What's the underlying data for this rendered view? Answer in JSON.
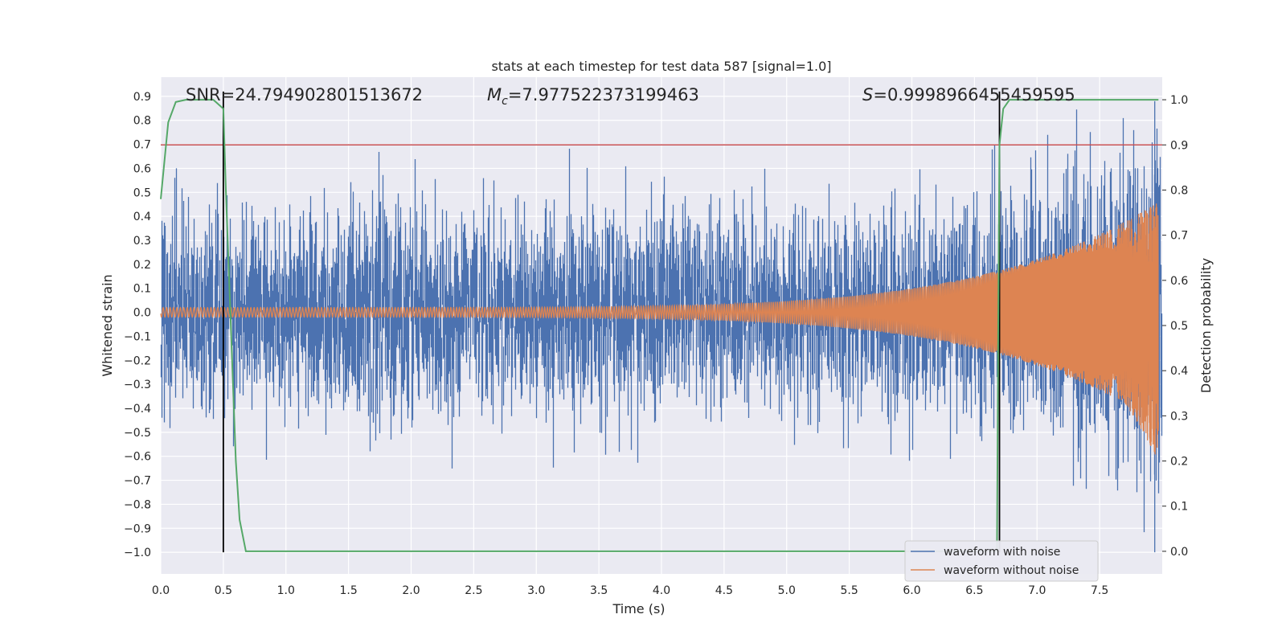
{
  "chart_data": {
    "type": "line",
    "title": "stats at each timestep for test data 587 [signal=1.0]",
    "xlabel": "Time (s)",
    "ylabel": "Whitened strain",
    "ylabel_right": "Detection probability",
    "xlim": [
      0.0,
      8.0
    ],
    "ylim": [
      -1.09,
      0.98
    ],
    "ylim_right": [
      -0.05,
      1.05
    ],
    "x_ticks": [
      0.0,
      0.5,
      1.0,
      1.5,
      2.0,
      2.5,
      3.0,
      3.5,
      4.0,
      4.5,
      5.0,
      5.5,
      6.0,
      6.5,
      7.0,
      7.5
    ],
    "x_tick_labels": [
      "0.0",
      "0.5",
      "1.0",
      "1.5",
      "2.0",
      "2.5",
      "3.0",
      "3.5",
      "4.0",
      "4.5",
      "5.0",
      "5.5",
      "6.0",
      "6.5",
      "7.0",
      "7.5"
    ],
    "y_ticks": [
      0.9,
      0.8,
      0.7,
      0.6,
      0.5,
      0.4,
      0.3,
      0.2,
      0.1,
      0.0,
      -0.1,
      -0.2,
      -0.3,
      -0.4,
      -0.5,
      -0.6,
      -0.7,
      -0.8,
      -0.9,
      -1.0
    ],
    "y_tick_labels": [
      "0.9",
      "0.8",
      "0.7",
      "0.6",
      "0.5",
      "0.4",
      "0.3",
      "0.2",
      "0.1",
      "0.0",
      "−0.1",
      "−0.2",
      "−0.3",
      "−0.4",
      "−0.5",
      "−0.6",
      "−0.7",
      "−0.8",
      "−0.9",
      "−1.0"
    ],
    "y_right_ticks": [
      1.0,
      0.9,
      0.8,
      0.7,
      0.6,
      0.5,
      0.4,
      0.3,
      0.2,
      0.1,
      0.0
    ],
    "y_right_tick_labels": [
      "1.0",
      "0.9",
      "0.8",
      "0.7",
      "0.6",
      "0.5",
      "0.4",
      "0.3",
      "0.2",
      "0.1",
      "0.0"
    ],
    "annotations": {
      "snr": "SNR=24.794902801513672",
      "mc_symbol": "M",
      "mc_sub": "c",
      "mc_value": "=7.977522373199463",
      "s_symbol": "S",
      "s_value": "=0.9998966455459595"
    },
    "legend": {
      "position": "lower right",
      "entries": [
        "waveform with noise",
        "waveform without noise"
      ]
    },
    "series": [
      {
        "name": "waveform with noise",
        "color": "#4c72b0",
        "axis": "left",
        "envelope": {
          "typical_amplitude": 0.42,
          "peak_max": 0.9,
          "peak_min": -1.0
        }
      },
      {
        "name": "waveform without noise",
        "color": "#dd8452",
        "axis": "left",
        "envelope": {
          "start_amplitude": 0.02,
          "end_max": 0.47,
          "end_min": -0.65
        }
      },
      {
        "name": "detection probability",
        "color": "#55a868",
        "axis": "right",
        "x": [
          0.0,
          0.06,
          0.12,
          0.2,
          0.3,
          0.42,
          0.5,
          0.52,
          0.56,
          0.6,
          0.63,
          0.68,
          0.75,
          1.0,
          6.68,
          6.69,
          6.7,
          6.73,
          6.78,
          6.85,
          7.97
        ],
        "y": [
          0.78,
          0.95,
          0.995,
          1.0,
          1.0,
          1.0,
          0.98,
          0.8,
          0.5,
          0.2,
          0.07,
          0.0,
          0.0,
          0.0,
          0.0,
          0.5,
          0.9,
          0.98,
          1.0,
          1.0,
          1.0
        ]
      }
    ],
    "threshold": {
      "color": "#c44e52",
      "axis": "right",
      "value": 0.9
    },
    "vlines": [
      {
        "x": 0.5,
        "ymin": -1.0,
        "ymax": 0.9,
        "color": "#000000"
      },
      {
        "x": 6.7,
        "ymin": -1.0,
        "ymax": 0.9,
        "color": "#000000"
      }
    ],
    "colors": {
      "background": "#eaeaf2",
      "grid": "#ffffff",
      "text": "#262626"
    }
  }
}
